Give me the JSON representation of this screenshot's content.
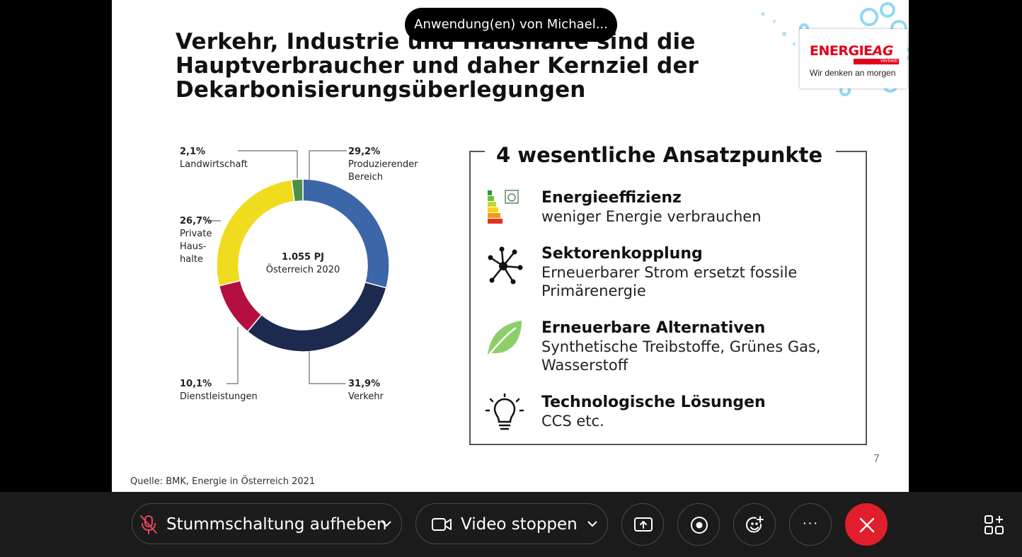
{
  "share_banner": {
    "text": "Anwendung(en) von Michael..."
  },
  "slide": {
    "title": "Verkehr, Industrie und Haushalte sind die Hauptverbraucher und daher Kernziel der Dekarbonisierungsüberlegungen",
    "logo": {
      "brand_main": "ENERGIE",
      "brand_ag": "AG",
      "brand_sub": "Vertrieb",
      "tagline": "Wir denken an morgen"
    },
    "donut": {
      "center_value": "1.055 PJ",
      "center_label": "Österreich 2020",
      "labels": {
        "landwirtschaft": {
          "pct": "2,1%",
          "name": "Landwirtschaft"
        },
        "produzierend": {
          "pct": "29,2%",
          "name": "Produzierender\nBereich"
        },
        "haushalte": {
          "pct": "26,7%",
          "name": "Private\nHaus-\nhalte"
        },
        "dienstleistungen": {
          "pct": "10,1%",
          "name": "Dienstleistungen"
        },
        "verkehr": {
          "pct": "31,9%",
          "name": "Verkehr"
        }
      }
    },
    "panel": {
      "title": "4 wesentliche Ansatzpunkte",
      "points": [
        {
          "icon": "energy-label-icon",
          "heading": "Energieeffizienz",
          "body": "weniger Energie verbrauchen"
        },
        {
          "icon": "network-icon",
          "heading": "Sektorenkopplung",
          "body": "Erneuerbarer Strom ersetzt fossile Primärenergie"
        },
        {
          "icon": "leaf-icon",
          "heading": "Erneuerbare Alternativen",
          "body": "Synthetische Treibstoffe, Grünes Gas, Wasserstoff"
        },
        {
          "icon": "lightbulb-icon",
          "heading": "Technologische Lösungen",
          "body": "CCS etc."
        }
      ]
    },
    "page_number": "7",
    "source": "Quelle: BMK, Energie in Österreich 2021"
  },
  "chart_data": {
    "type": "pie",
    "style": "donut",
    "center_text": [
      "1.055 PJ",
      "Österreich 2020"
    ],
    "categories": [
      "Produzierender Bereich",
      "Verkehr",
      "Dienstleistungen",
      "Private Haushalte",
      "Landwirtschaft"
    ],
    "values": [
      29.2,
      31.9,
      10.1,
      26.7,
      2.1
    ],
    "value_labels": [
      "29,2%",
      "31,9%",
      "10,1%",
      "26,7%",
      "2,1%"
    ],
    "colors": [
      "#3b66a8",
      "#1b2a4e",
      "#b4103f",
      "#f0dc1e",
      "#4c8f48"
    ]
  },
  "toolbar": {
    "unmute_label": "Stummschaltung aufheben",
    "video_label": "Video stoppen",
    "colors": {
      "background": "#1b1b1b",
      "end_call": "#e01e2c",
      "muted_icon": "#e8485a"
    }
  }
}
